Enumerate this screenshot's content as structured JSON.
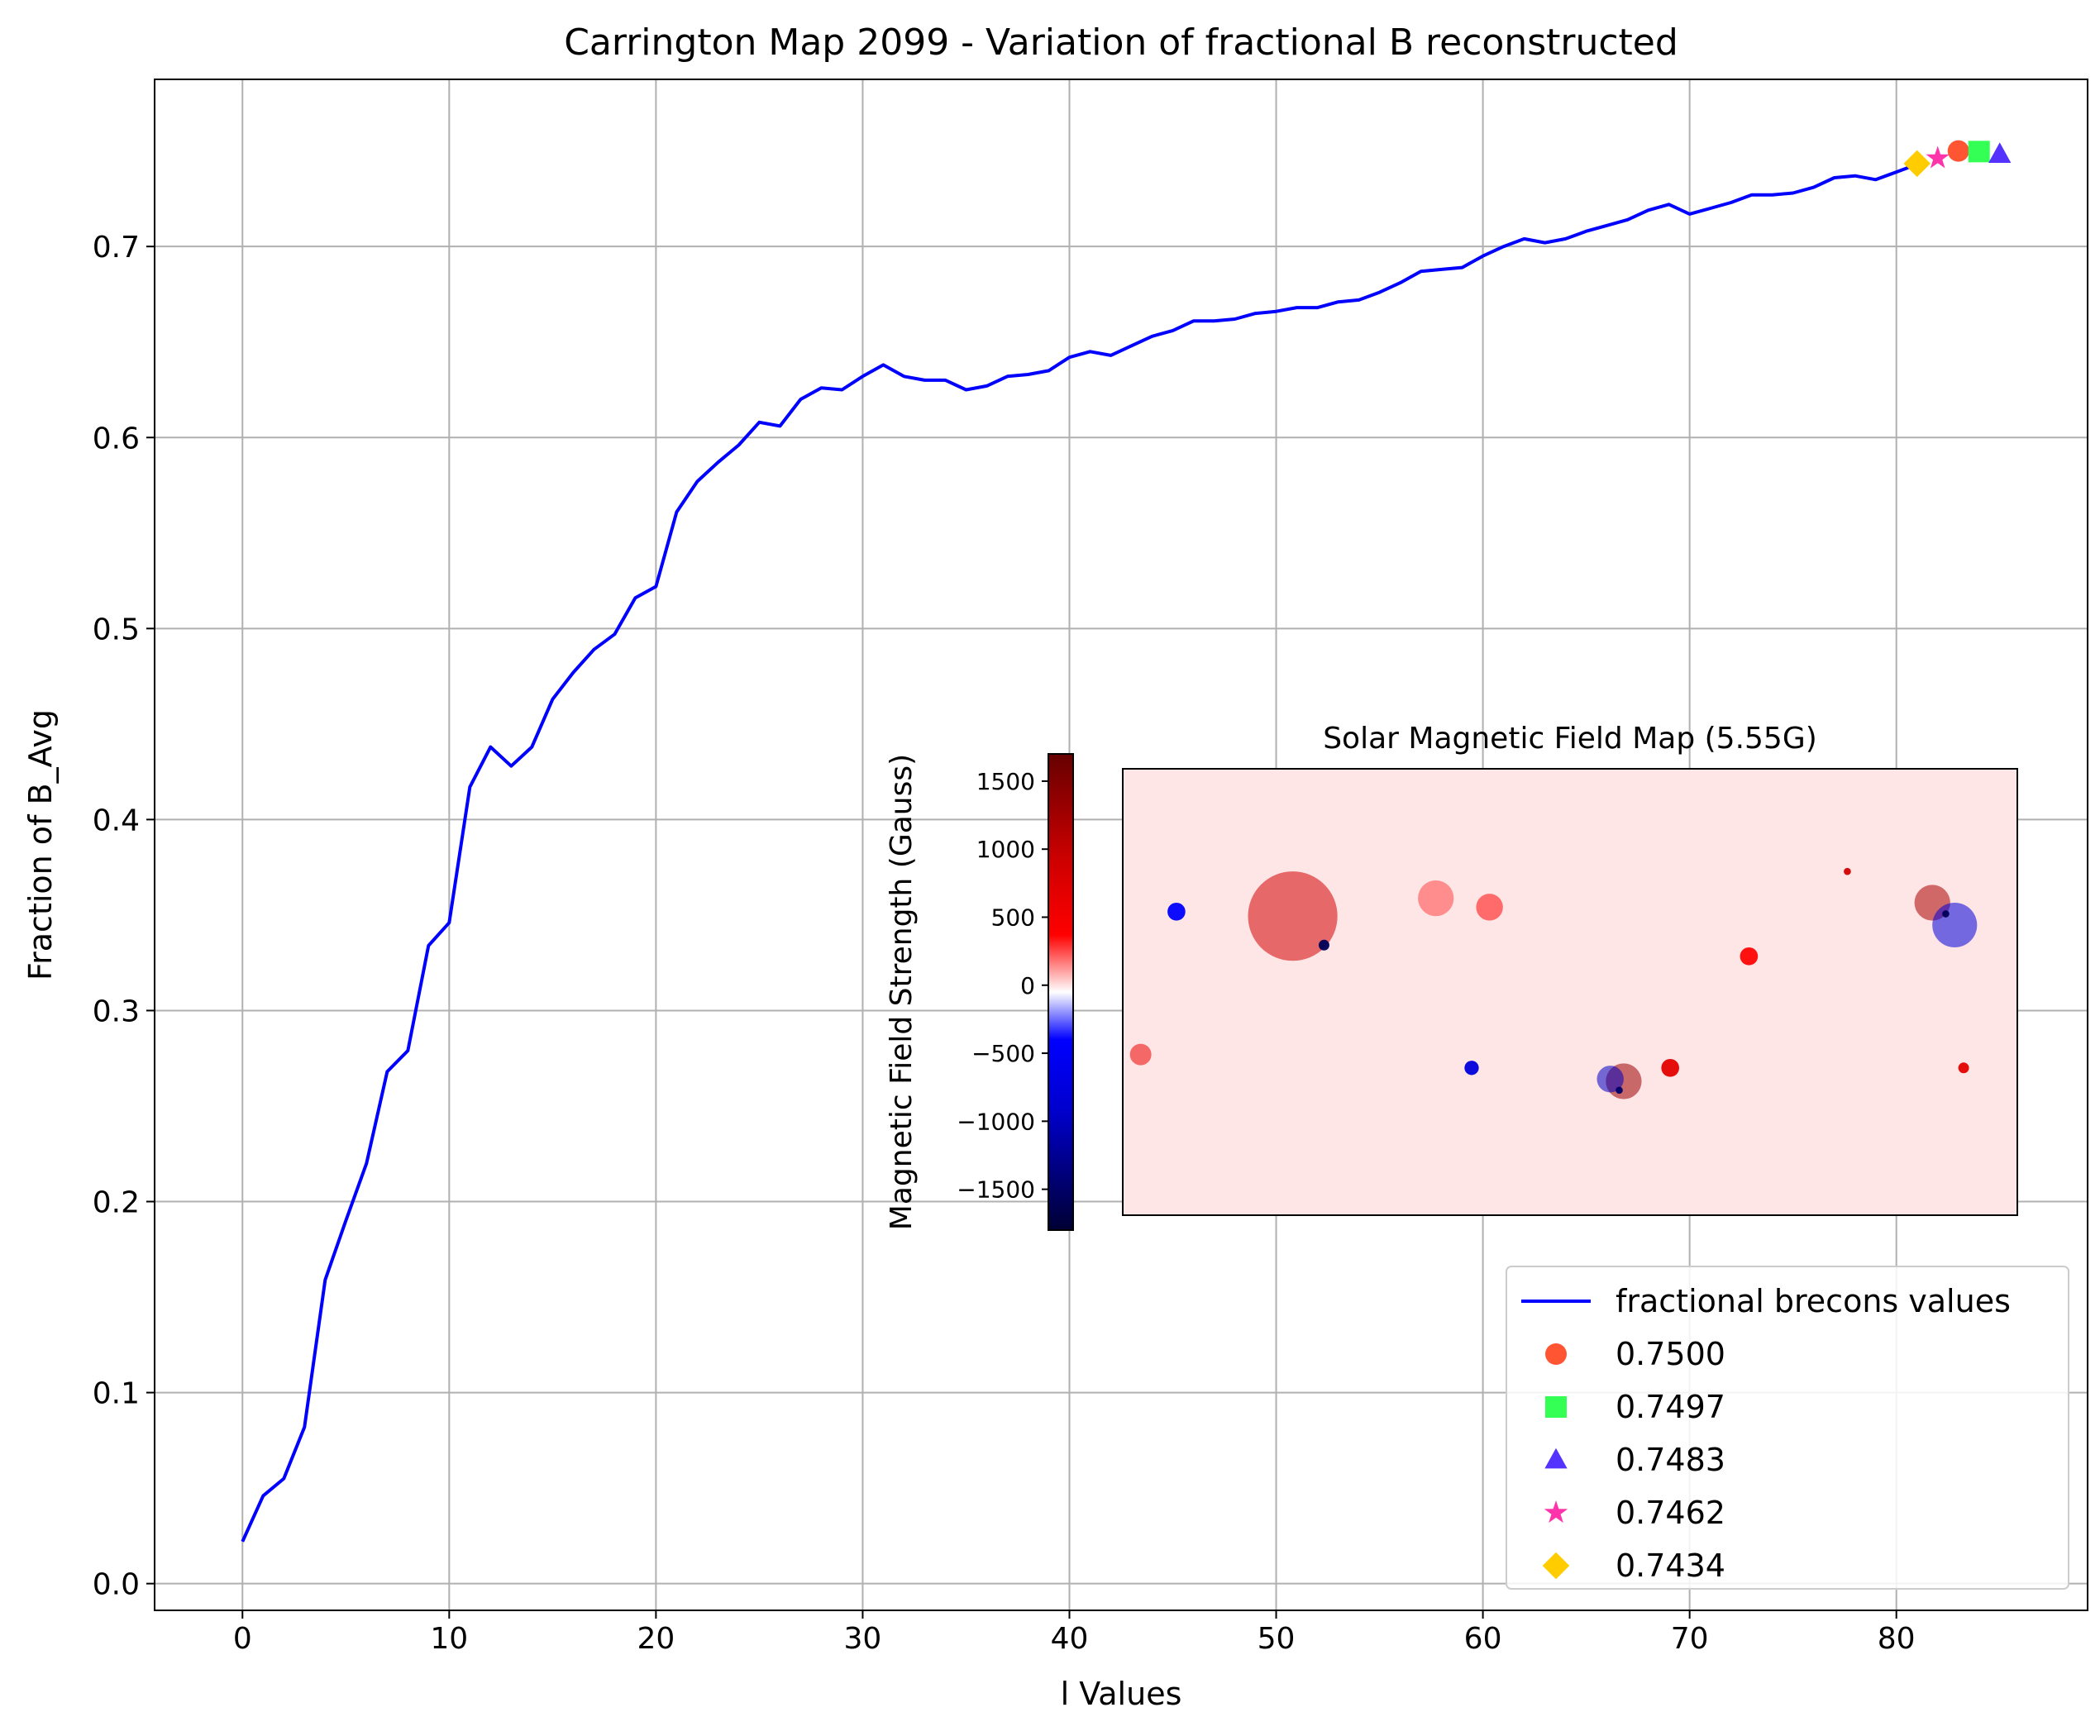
{
  "chart_data": [
    {
      "type": "line",
      "title": "Carrington Map 2099 - Variation of fractional B reconstructed",
      "xlabel": "l Values",
      "ylabel": "Fraction of B_Avg",
      "xlim": [
        -4.25,
        89.25
      ],
      "ylim": [
        -0.014,
        0.7875
      ],
      "xticks": [
        0,
        10,
        20,
        30,
        40,
        50,
        60,
        70,
        80
      ],
      "xtick_labels": [
        "0",
        "10",
        "20",
        "30",
        "40",
        "50",
        "60",
        "70",
        "80"
      ],
      "yticks": [
        0.0,
        0.1,
        0.2,
        0.3,
        0.4,
        0.5,
        0.6,
        0.7
      ],
      "ytick_labels": [
        "0.0",
        "0.1",
        "0.2",
        "0.3",
        "0.4",
        "0.5",
        "0.6",
        "0.7"
      ],
      "grid": true,
      "legend_position": "lower-right",
      "series": [
        {
          "name": "fractional brecons values",
          "color": "#0000ff",
          "x": [
            0,
            1,
            2,
            3,
            4,
            5,
            6,
            7,
            8,
            9,
            10,
            11,
            12,
            13,
            14,
            15,
            16,
            17,
            18,
            19,
            20,
            21,
            22,
            23,
            24,
            25,
            26,
            27,
            28,
            29,
            30,
            31,
            32,
            33,
            34,
            35,
            36,
            37,
            38,
            39,
            40,
            41,
            42,
            43,
            44,
            45,
            46,
            47,
            48,
            49,
            50,
            51,
            52,
            53,
            54,
            55,
            56,
            57,
            58,
            59,
            60,
            61,
            62,
            63,
            64,
            65,
            66,
            67,
            68,
            69,
            70,
            71,
            72,
            73,
            74,
            75,
            76,
            77,
            78,
            79,
            80,
            81
          ],
          "y": [
            0.022,
            0.046,
            0.055,
            0.082,
            0.159,
            0.19,
            0.22,
            0.268,
            0.279,
            0.334,
            0.346,
            0.417,
            0.438,
            0.428,
            0.438,
            0.463,
            0.477,
            0.489,
            0.497,
            0.516,
            0.522,
            0.561,
            0.577,
            0.587,
            0.596,
            0.608,
            0.606,
            0.62,
            0.626,
            0.625,
            0.632,
            0.638,
            0.632,
            0.63,
            0.63,
            0.625,
            0.627,
            0.632,
            0.633,
            0.635,
            0.642,
            0.645,
            0.643,
            0.648,
            0.653,
            0.656,
            0.661,
            0.661,
            0.662,
            0.665,
            0.666,
            0.668,
            0.668,
            0.671,
            0.672,
            0.676,
            0.681,
            0.687,
            0.688,
            0.689,
            0.695,
            0.7,
            0.704,
            0.702,
            0.704,
            0.708,
            0.711,
            0.714,
            0.719,
            0.722,
            0.717,
            0.72,
            0.723,
            0.727,
            0.727,
            0.728,
            0.731,
            0.736,
            0.737,
            0.735,
            0.739,
            0.743
          ]
        }
      ],
      "markers": [
        {
          "label": "0.7500",
          "x": 83,
          "y": 0.75,
          "marker": "circle",
          "color": "#ff5533"
        },
        {
          "label": "0.7497",
          "x": 84,
          "y": 0.7497,
          "marker": "square",
          "color": "#33ff55"
        },
        {
          "label": "0.7483",
          "x": 85,
          "y": 0.7483,
          "marker": "triangle",
          "color": "#5533ff"
        },
        {
          "label": "0.7462",
          "x": 82,
          "y": 0.7462,
          "marker": "star",
          "color": "#ff33aa"
        },
        {
          "label": "0.7434",
          "x": 81,
          "y": 0.7434,
          "marker": "diamond",
          "color": "#ffcc00"
        }
      ]
    },
    {
      "type": "heatmap",
      "title": "Solar Magnetic Field Map (5.55G)",
      "colorbar_label": "Magnetic Field Strength (Gauss)",
      "colorbar_range": [
        -1800,
        1700
      ],
      "colorbar_ticks": [
        1500,
        1000,
        500,
        0,
        -500,
        -1000,
        -1500
      ],
      "colorbar_tick_labels": [
        "1500",
        "1000",
        "500",
        "0",
        "−500",
        "−1000",
        "−1500"
      ],
      "colormap": "seismic",
      "background_value": 40,
      "colormap_stops": [
        "#000033",
        "#0000cc",
        "#0000ff",
        "#ffffff",
        "#ff0000",
        "#cc0000",
        "#660000"
      ],
      "features": [
        {
          "u": 0.19,
          "v": 0.33,
          "value": 900,
          "spread": 0.05
        },
        {
          "u": 0.225,
          "v": 0.395,
          "value": -1500,
          "spread": 0.006
        },
        {
          "u": 0.56,
          "v": 0.7,
          "value": 1300,
          "spread": 0.02
        },
        {
          "u": 0.545,
          "v": 0.695,
          "value": -900,
          "spread": 0.015
        },
        {
          "u": 0.555,
          "v": 0.72,
          "value": -1400,
          "spread": 0.004
        },
        {
          "u": 0.905,
          "v": 0.3,
          "value": 1200,
          "spread": 0.02
        },
        {
          "u": 0.93,
          "v": 0.35,
          "value": -700,
          "spread": 0.025
        },
        {
          "u": 0.92,
          "v": 0.325,
          "value": -1500,
          "spread": 0.004
        },
        {
          "u": 0.39,
          "v": 0.67,
          "value": -700,
          "spread": 0.008
        },
        {
          "u": 0.612,
          "v": 0.67,
          "value": 700,
          "spread": 0.01
        },
        {
          "u": 0.02,
          "v": 0.64,
          "value": 600,
          "spread": 0.012
        },
        {
          "u": 0.81,
          "v": 0.23,
          "value": 900,
          "spread": 0.004
        },
        {
          "u": 0.41,
          "v": 0.31,
          "value": 400,
          "spread": 0.015
        },
        {
          "u": 0.06,
          "v": 0.32,
          "value": -350,
          "spread": 0.01
        },
        {
          "u": 0.94,
          "v": 0.67,
          "value": 700,
          "spread": 0.006
        },
        {
          "u": 0.35,
          "v": 0.29,
          "value": 300,
          "spread": 0.02
        },
        {
          "u": 0.7,
          "v": 0.42,
          "value": 400,
          "spread": 0.01
        }
      ]
    }
  ]
}
